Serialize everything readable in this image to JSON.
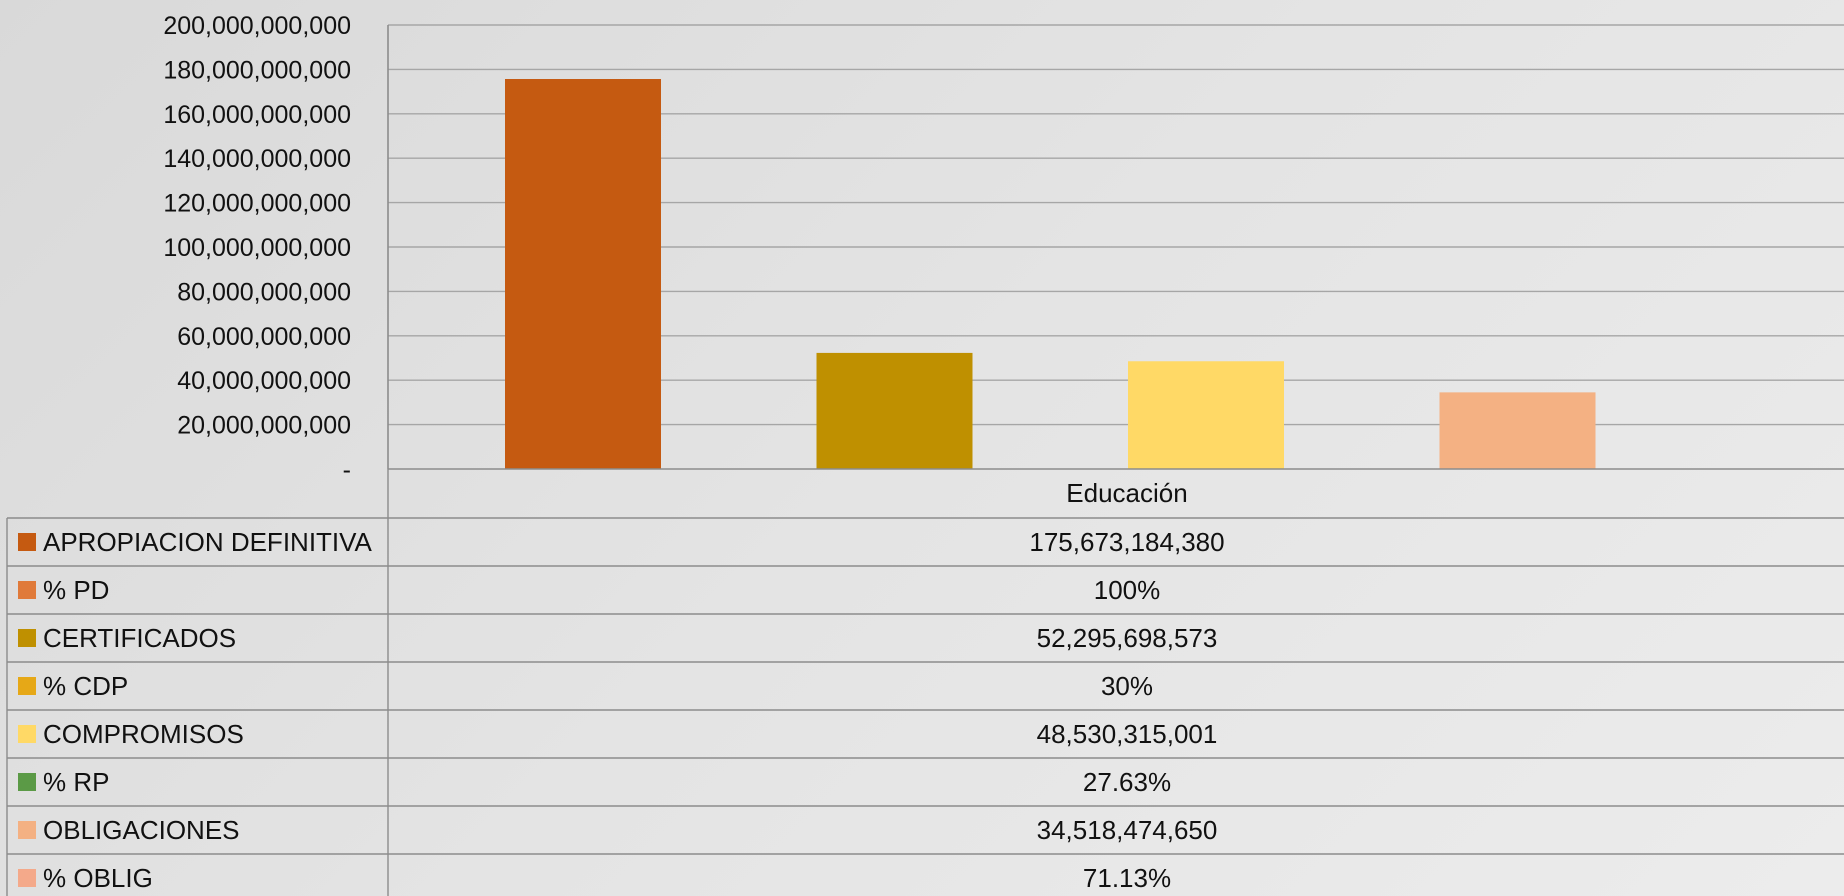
{
  "chart_data": {
    "type": "bar",
    "categories": [
      "Educación"
    ],
    "ylim": [
      0,
      200000000000
    ],
    "yticks": [
      {
        "value": 0,
        "label": "-"
      },
      {
        "value": 20000000000,
        "label": "20,000,000,000"
      },
      {
        "value": 40000000000,
        "label": "40,000,000,000"
      },
      {
        "value": 60000000000,
        "label": "60,000,000,000"
      },
      {
        "value": 80000000000,
        "label": "80,000,000,000"
      },
      {
        "value": 100000000000,
        "label": "100,000,000,000"
      },
      {
        "value": 120000000000,
        "label": "120,000,000,000"
      },
      {
        "value": 140000000000,
        "label": "140,000,000,000"
      },
      {
        "value": 160000000000,
        "label": "160,000,000,000"
      },
      {
        "value": 180000000000,
        "label": "180,000,000,000"
      },
      {
        "value": 200000000000,
        "label": "200,000,000,000"
      }
    ],
    "grid": true,
    "legend": "data-table-below",
    "series": [
      {
        "name": "APROPIACION DEFINITIVA",
        "color": "#c55a11",
        "bar": true,
        "value": 175673184380,
        "display": "175,673,184,380"
      },
      {
        "name": "% PD",
        "color": "#e07a3a",
        "bar": false,
        "value": 1.0,
        "display": "100%"
      },
      {
        "name": "CERTIFICADOS",
        "color": "#bf9000",
        "bar": true,
        "value": 52295698573,
        "display": "52,295,698,573"
      },
      {
        "name": "% CDP",
        "color": "#e6a817",
        "bar": false,
        "value": 0.3,
        "display": "30%"
      },
      {
        "name": "COMPROMISOS",
        "color": "#ffd966",
        "bar": true,
        "value": 48530315001,
        "display": "48,530,315,001"
      },
      {
        "name": "% RP",
        "color": "#5b9a46",
        "bar": false,
        "value": 0.2763,
        "display": "27.63%"
      },
      {
        "name": "OBLIGACIONES",
        "color": "#f4b183",
        "bar": true,
        "value": 34518474650,
        "display": "34,518,474,650"
      },
      {
        "name": "% OBLIG",
        "color": "#f4a98a",
        "bar": false,
        "value": 0.7113,
        "display": "71.13%"
      }
    ]
  }
}
